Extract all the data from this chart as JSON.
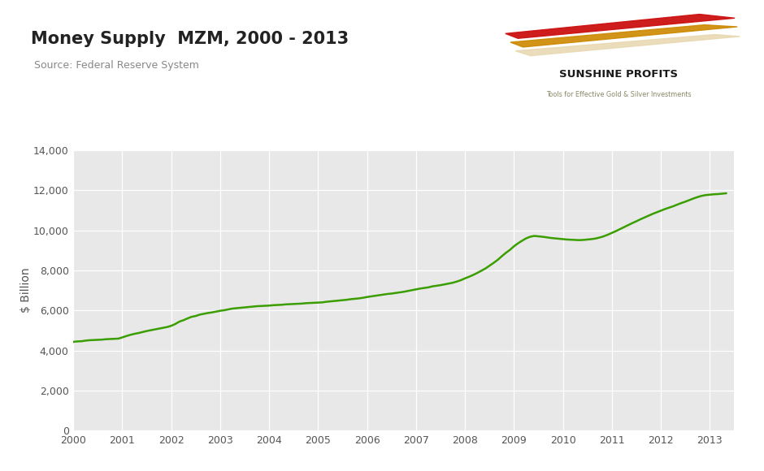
{
  "title": "Money Supply  MZM, 2000 - 2013",
  "source_text": "Source: Federal Reserve System",
  "ylabel": "$ Billion",
  "line_color": "#3a9e00",
  "line_width": 1.8,
  "bg_color": "#e8e8e8",
  "outer_bg": "#ffffff",
  "ylim": [
    0,
    14000
  ],
  "yticks": [
    0,
    2000,
    4000,
    6000,
    8000,
    10000,
    12000,
    14000
  ],
  "xlim": [
    2000,
    2013.5
  ],
  "xticks": [
    2000,
    2001,
    2002,
    2003,
    2004,
    2005,
    2006,
    2007,
    2008,
    2009,
    2010,
    2011,
    2012,
    2013
  ],
  "data_x": [
    2000.0,
    2000.083,
    2000.167,
    2000.25,
    2000.333,
    2000.417,
    2000.5,
    2000.583,
    2000.667,
    2000.75,
    2000.833,
    2000.917,
    2001.0,
    2001.083,
    2001.167,
    2001.25,
    2001.333,
    2001.417,
    2001.5,
    2001.583,
    2001.667,
    2001.75,
    2001.833,
    2001.917,
    2002.0,
    2002.083,
    2002.167,
    2002.25,
    2002.333,
    2002.417,
    2002.5,
    2002.583,
    2002.667,
    2002.75,
    2002.833,
    2002.917,
    2003.0,
    2003.083,
    2003.167,
    2003.25,
    2003.333,
    2003.417,
    2003.5,
    2003.583,
    2003.667,
    2003.75,
    2003.833,
    2003.917,
    2004.0,
    2004.083,
    2004.167,
    2004.25,
    2004.333,
    2004.417,
    2004.5,
    2004.583,
    2004.667,
    2004.75,
    2004.833,
    2004.917,
    2005.0,
    2005.083,
    2005.167,
    2005.25,
    2005.333,
    2005.417,
    2005.5,
    2005.583,
    2005.667,
    2005.75,
    2005.833,
    2005.917,
    2006.0,
    2006.083,
    2006.167,
    2006.25,
    2006.333,
    2006.417,
    2006.5,
    2006.583,
    2006.667,
    2006.75,
    2006.833,
    2006.917,
    2007.0,
    2007.083,
    2007.167,
    2007.25,
    2007.333,
    2007.417,
    2007.5,
    2007.583,
    2007.667,
    2007.75,
    2007.833,
    2007.917,
    2008.0,
    2008.083,
    2008.167,
    2008.25,
    2008.333,
    2008.417,
    2008.5,
    2008.583,
    2008.667,
    2008.75,
    2008.833,
    2008.917,
    2009.0,
    2009.083,
    2009.167,
    2009.25,
    2009.333,
    2009.417,
    2009.5,
    2009.583,
    2009.667,
    2009.75,
    2009.833,
    2009.917,
    2010.0,
    2010.083,
    2010.167,
    2010.25,
    2010.333,
    2010.417,
    2010.5,
    2010.583,
    2010.667,
    2010.75,
    2010.833,
    2010.917,
    2011.0,
    2011.083,
    2011.167,
    2011.25,
    2011.333,
    2011.417,
    2011.5,
    2011.583,
    2011.667,
    2011.75,
    2011.833,
    2011.917,
    2012.0,
    2012.083,
    2012.167,
    2012.25,
    2012.333,
    2012.417,
    2012.5,
    2012.583,
    2012.667,
    2012.75,
    2012.833,
    2012.917,
    2013.0,
    2013.083,
    2013.167,
    2013.25,
    2013.333
  ],
  "data_y": [
    4430,
    4450,
    4460,
    4490,
    4510,
    4520,
    4530,
    4540,
    4560,
    4570,
    4580,
    4590,
    4650,
    4720,
    4780,
    4830,
    4870,
    4920,
    4970,
    5010,
    5050,
    5090,
    5130,
    5170,
    5230,
    5320,
    5440,
    5510,
    5600,
    5680,
    5720,
    5790,
    5830,
    5870,
    5900,
    5940,
    5980,
    6010,
    6050,
    6090,
    6110,
    6130,
    6150,
    6170,
    6190,
    6210,
    6220,
    6230,
    6240,
    6260,
    6270,
    6280,
    6300,
    6310,
    6320,
    6330,
    6340,
    6360,
    6370,
    6380,
    6390,
    6400,
    6430,
    6450,
    6470,
    6490,
    6510,
    6530,
    6560,
    6580,
    6600,
    6630,
    6670,
    6700,
    6730,
    6760,
    6790,
    6820,
    6840,
    6870,
    6900,
    6930,
    6970,
    7010,
    7050,
    7090,
    7120,
    7150,
    7200,
    7230,
    7260,
    7300,
    7340,
    7380,
    7440,
    7510,
    7600,
    7680,
    7770,
    7870,
    7980,
    8090,
    8230,
    8370,
    8520,
    8700,
    8870,
    9020,
    9200,
    9350,
    9480,
    9600,
    9680,
    9720,
    9700,
    9680,
    9650,
    9620,
    9600,
    9580,
    9560,
    9540,
    9530,
    9520,
    9510,
    9520,
    9540,
    9560,
    9590,
    9640,
    9700,
    9780,
    9870,
    9960,
    10060,
    10160,
    10260,
    10360,
    10450,
    10550,
    10640,
    10730,
    10820,
    10900,
    10980,
    11060,
    11130,
    11200,
    11280,
    11360,
    11430,
    11510,
    11590,
    11660,
    11720,
    11760,
    11780,
    11800,
    11810,
    11830,
    11850
  ],
  "logo_arrows": [
    {
      "points": [
        [
          0.28,
          0.92
        ],
        [
          0.78,
          0.38
        ],
        [
          0.72,
          0.36
        ],
        [
          0.22,
          0.9
        ]
      ],
      "color": "#cc1111"
    },
    {
      "points": [
        [
          0.33,
          0.83
        ],
        [
          0.83,
          0.29
        ],
        [
          0.77,
          0.27
        ],
        [
          0.27,
          0.81
        ]
      ],
      "color": "#cc8800"
    },
    {
      "points": [
        [
          0.38,
          0.74
        ],
        [
          0.92,
          0.2
        ],
        [
          0.86,
          0.18
        ],
        [
          0.32,
          0.72
        ]
      ],
      "color": "#e8d8a0"
    }
  ],
  "logo_text1": "SUNSHINE PROFITS",
  "logo_text2": "Tools for Effective Gold & Silver Investments"
}
